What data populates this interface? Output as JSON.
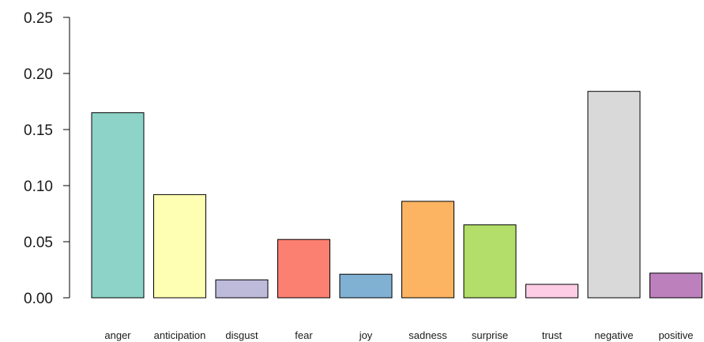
{
  "chart_data": {
    "type": "bar",
    "title": "",
    "xlabel": "",
    "ylabel": "",
    "ylim": [
      0,
      0.25
    ],
    "yticks": [
      "0.00",
      "0.05",
      "0.10",
      "0.15",
      "0.20",
      "0.25"
    ],
    "categories": [
      "anger",
      "anticipation",
      "disgust",
      "fear",
      "joy",
      "sadness",
      "surprise",
      "trust",
      "negative",
      "positive"
    ],
    "values": [
      0.165,
      0.092,
      0.016,
      0.052,
      0.021,
      0.086,
      0.065,
      0.012,
      0.184,
      0.022
    ],
    "colors": [
      "#8dd3c7",
      "#ffffb3",
      "#bebada",
      "#fb8072",
      "#80b1d3",
      "#fdb462",
      "#b3de69",
      "#fccde5",
      "#d9d9d9",
      "#bc80bd"
    ],
    "grid": false,
    "legend": "none"
  }
}
